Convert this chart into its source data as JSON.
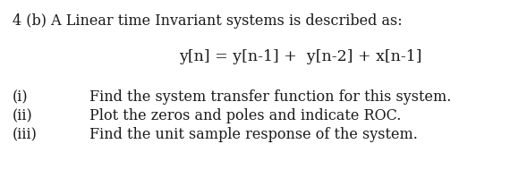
{
  "background_color": "#ffffff",
  "title_line": "4 (b) A Linear time Invariant systems is described as:",
  "equation": "y[n] = y[n-1] +  y[n-2] + x[n-1]",
  "items": [
    {
      "label": "(i)",
      "text": "Find the system transfer function for this system."
    },
    {
      "label": "(ii)",
      "text": "Plot the zeros and poles and indicate ROC."
    },
    {
      "label": "(iii)",
      "text": "Find the unit sample response of the system."
    }
  ],
  "font_family": "DejaVu Serif",
  "title_fontsize": 11.5,
  "equation_fontsize": 12.5,
  "item_fontsize": 11.5,
  "text_color": "#1a1a1a",
  "fig_width": 5.7,
  "fig_height": 2.18,
  "dpi": 100
}
